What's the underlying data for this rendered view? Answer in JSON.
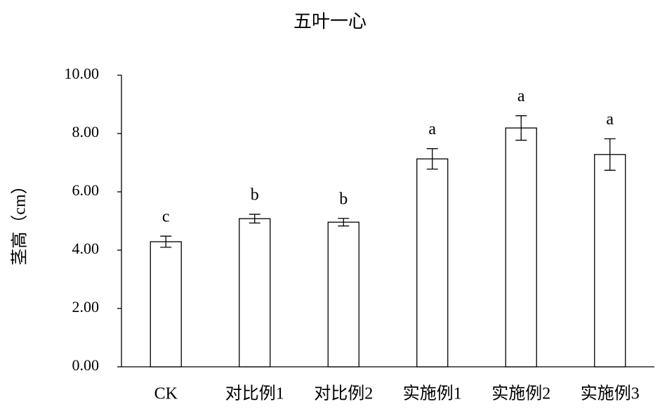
{
  "chart_data": {
    "type": "bar",
    "title": "五叶一心",
    "ylabel": "茎高（cm）",
    "categories": [
      "CK",
      "对比例1",
      "对比例2",
      "实施例1",
      "实施例2",
      "实施例3"
    ],
    "values": [
      4.29,
      5.08,
      4.96,
      7.13,
      8.19,
      7.28
    ],
    "errors": [
      0.19,
      0.15,
      0.13,
      0.35,
      0.42,
      0.54
    ],
    "significance_labels": [
      "c",
      "b",
      "b",
      "a",
      "a",
      "a"
    ],
    "color": "#ffffff",
    "ylim": [
      0,
      10
    ],
    "yticks": [
      {
        "value": 0,
        "label": "0.00"
      },
      {
        "value": 2,
        "label": "2.00"
      },
      {
        "value": 4,
        "label": "4.00"
      },
      {
        "value": 6,
        "label": "6.00"
      },
      {
        "value": 8,
        "label": "8.00"
      },
      {
        "value": 10,
        "label": "10.00"
      }
    ],
    "grid": false
  }
}
